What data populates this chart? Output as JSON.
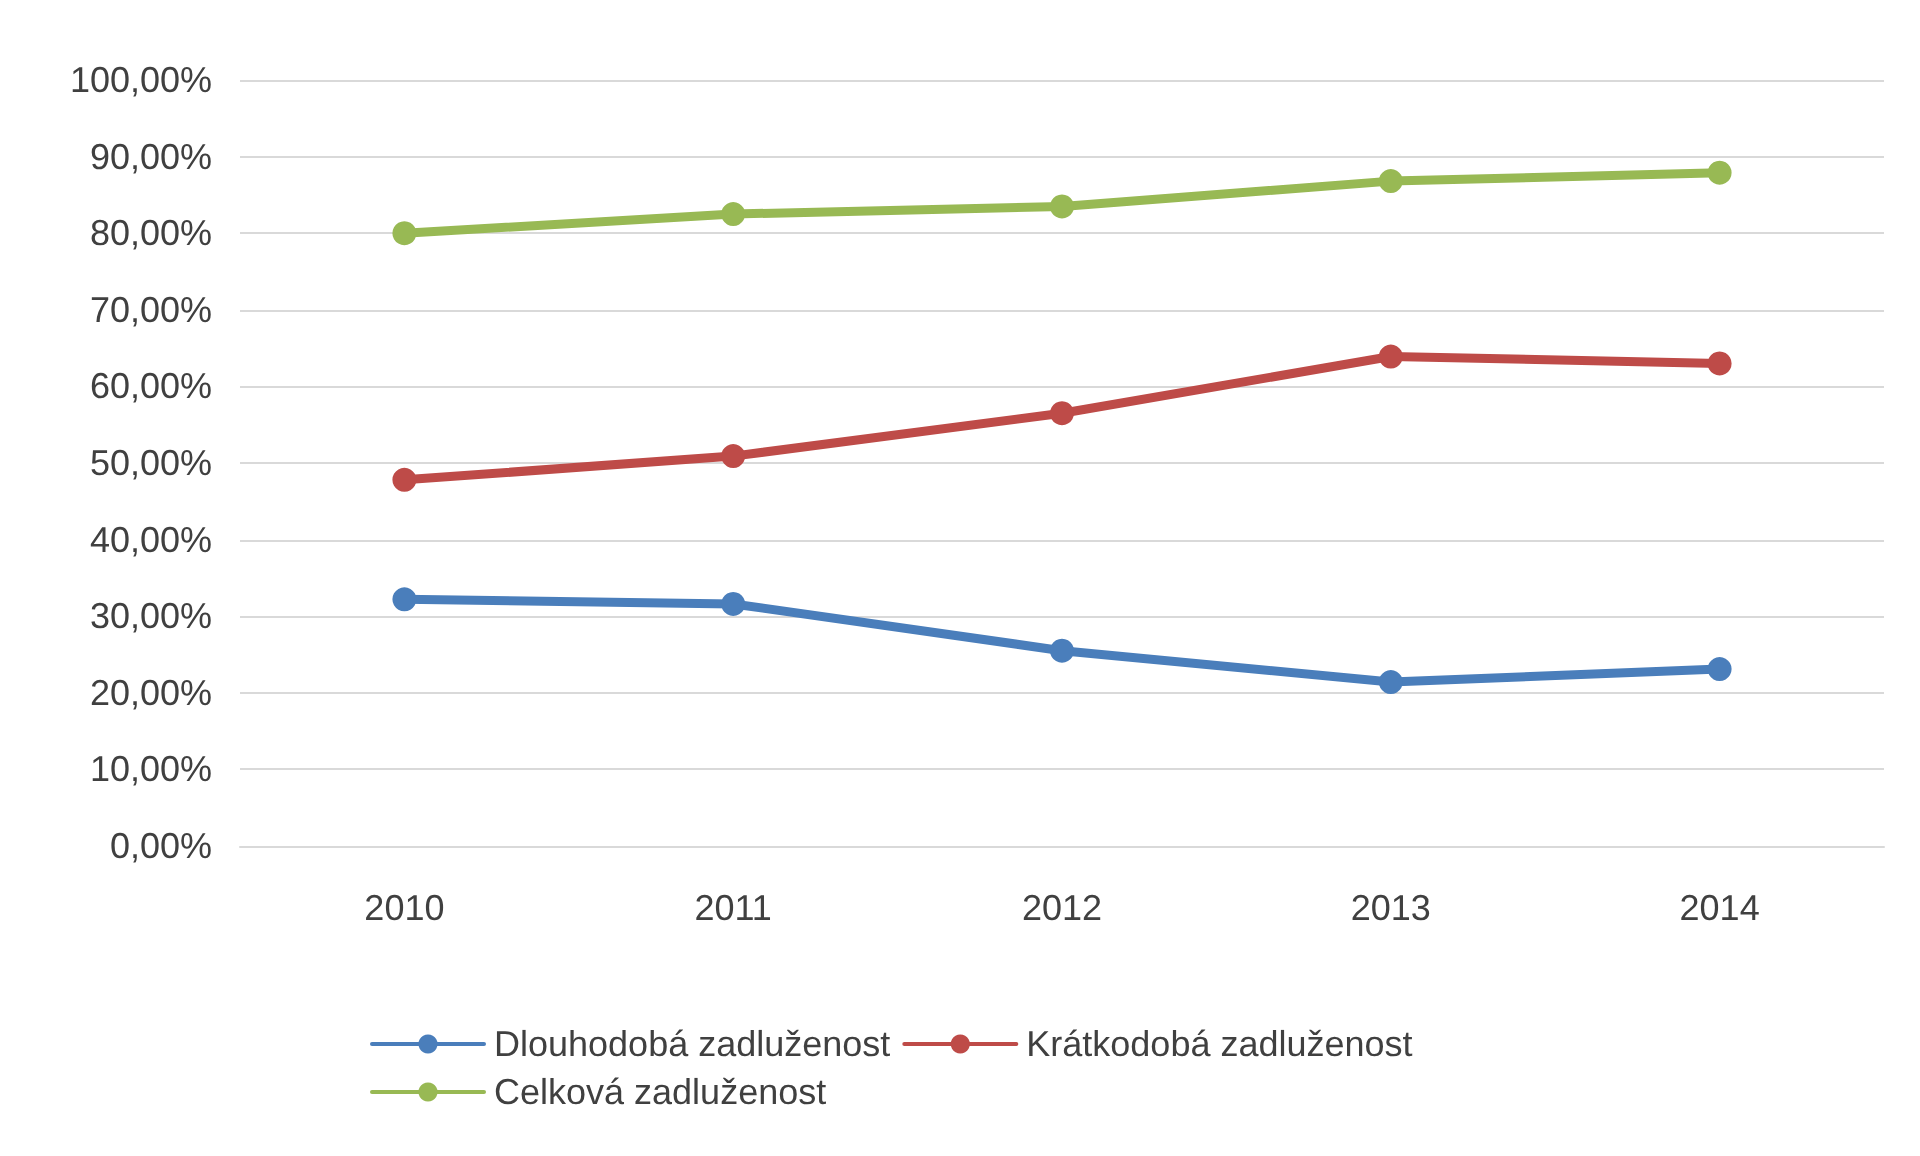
{
  "chart_data": {
    "type": "line",
    "categories": [
      "2010",
      "2011",
      "2012",
      "2013",
      "2014"
    ],
    "series": [
      {
        "name": "Dlouhodobá zadluženost",
        "color": "#4a7ebb",
        "values": [
          32.2,
          31.6,
          25.5,
          21.4,
          23.1
        ]
      },
      {
        "name": "Krátkodobá zadluženost",
        "color": "#be4b48",
        "values": [
          47.8,
          50.9,
          56.5,
          63.9,
          63.0
        ]
      },
      {
        "name": "Celková zadluženost",
        "color": "#98b954",
        "values": [
          80.0,
          82.5,
          83.5,
          86.8,
          87.9
        ]
      }
    ],
    "ylim": [
      0,
      100
    ],
    "yticks": [
      {
        "value": 0,
        "label": "0,00%"
      },
      {
        "value": 10,
        "label": "10,00%"
      },
      {
        "value": 20,
        "label": "20,00%"
      },
      {
        "value": 30,
        "label": "30,00%"
      },
      {
        "value": 40,
        "label": "40,00%"
      },
      {
        "value": 50,
        "label": "50,00%"
      },
      {
        "value": 60,
        "label": "60,00%"
      },
      {
        "value": 70,
        "label": "70,00%"
      },
      {
        "value": 80,
        "label": "80,00%"
      },
      {
        "value": 90,
        "label": "90,00%"
      },
      {
        "value": 100,
        "label": "100,00%"
      }
    ],
    "grid": "y",
    "legend": "bottom",
    "marker": "circle",
    "line_style": "solid"
  }
}
